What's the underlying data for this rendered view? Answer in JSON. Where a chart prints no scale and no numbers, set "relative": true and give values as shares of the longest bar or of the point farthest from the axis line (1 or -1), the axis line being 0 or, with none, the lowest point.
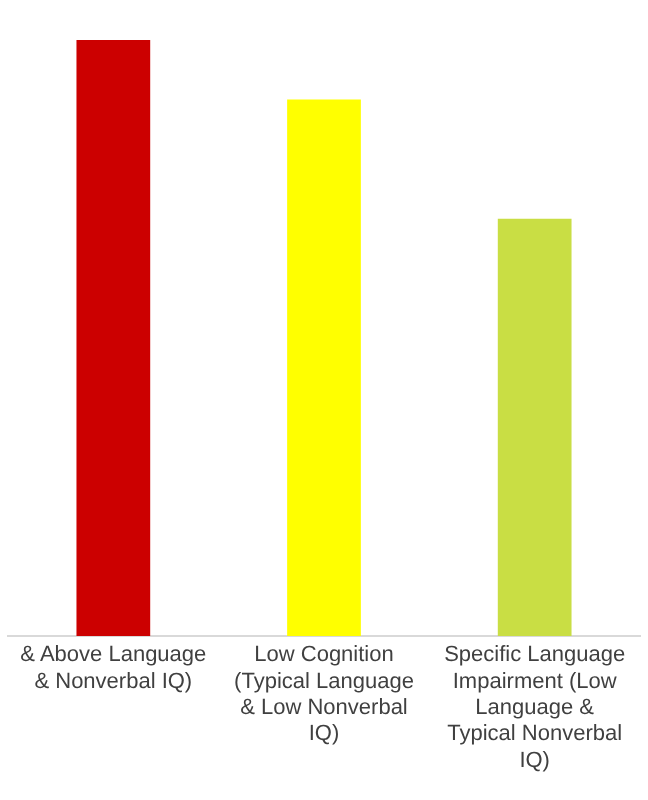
{
  "chart_data": {
    "type": "bar",
    "relative": true,
    "categories": [
      "& Above Language & Nonverbal IQ)",
      "Low Cognition (Typical Language & Low Nonverbal IQ)",
      "Specific Language Impairment (Low Language & Typical Nonverbal IQ)"
    ],
    "values": [
      1,
      0.9,
      0.7
    ],
    "colors": [
      "#cc0000",
      "#ffff00",
      "#c9de44"
    ],
    "grid": false,
    "legend": false
  }
}
